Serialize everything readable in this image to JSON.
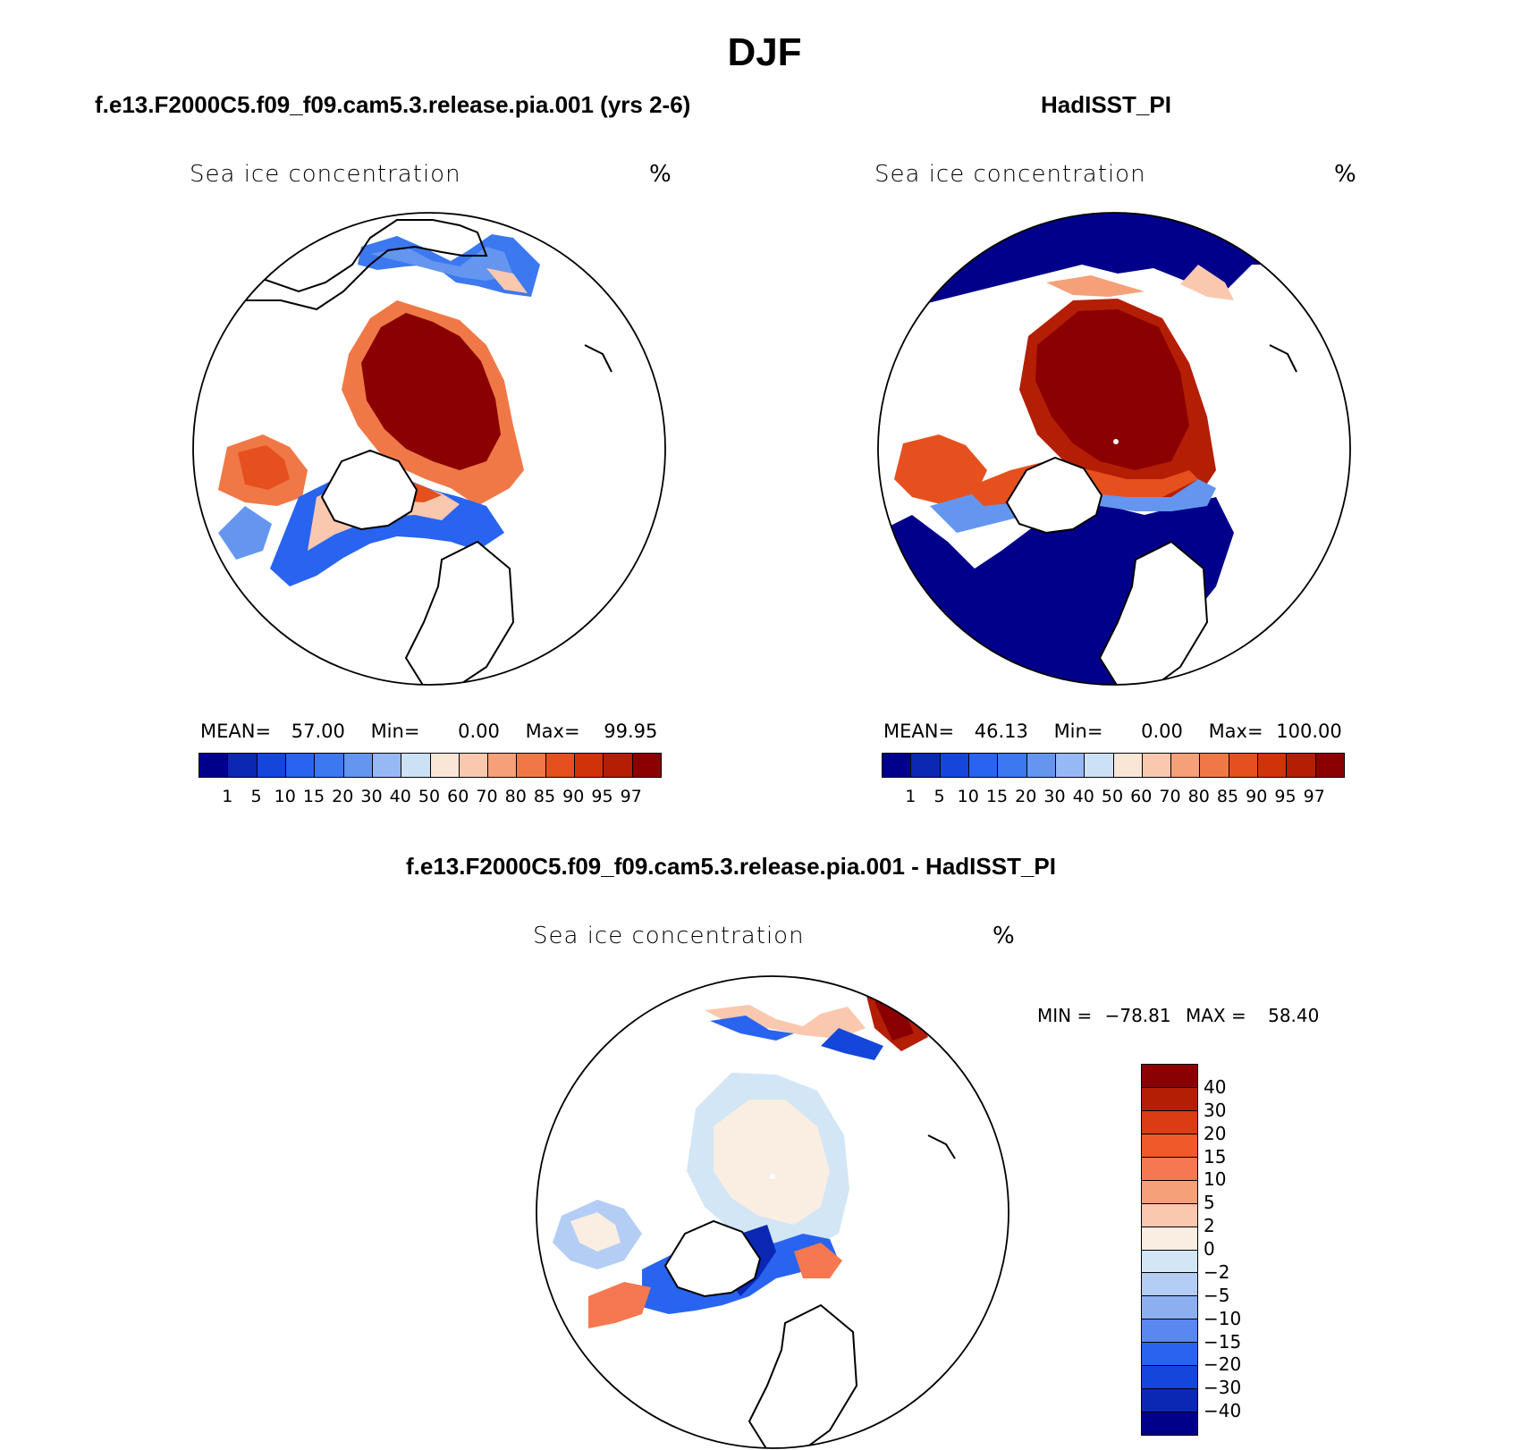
{
  "title": "DJF",
  "panels": [
    {
      "case": "f.e13.F2000C5.f09_f09.cam5.3.release.pia.001 (yrs 2-6)",
      "variable": "Sea ice concentration",
      "unit": "%",
      "stats": {
        "mean_label": "MEAN=",
        "mean": "57.00",
        "min_label": "Min=",
        "min": "0.00",
        "max_label": "Max=",
        "max": "99.95"
      }
    },
    {
      "case": "HadISST_PI",
      "variable": "Sea ice concentration",
      "unit": "%",
      "stats": {
        "mean_label": "MEAN=",
        "mean": "46.13",
        "min_label": "Min=",
        "min": "0.00",
        "max_label": "Max=",
        "max": "100.00"
      }
    }
  ],
  "colorbar": {
    "levels": [
      "1",
      "5",
      "10",
      "15",
      "20",
      "30",
      "40",
      "50",
      "60",
      "70",
      "80",
      "85",
      "90",
      "95",
      "97"
    ],
    "colors": [
      "#00008b",
      "#0a28b4",
      "#1446dc",
      "#2864f0",
      "#3c78f0",
      "#6496f0",
      "#96b9f5",
      "#cde1f5",
      "#fae6d7",
      "#fac8af",
      "#f5a078",
      "#f07846",
      "#e6501e",
      "#d2320a",
      "#b41e05",
      "#8b0000"
    ]
  },
  "difference": {
    "title": "f.e13.F2000C5.f09_f09.cam5.3.release.pia.001 - HadISST_PI",
    "variable": "Sea ice concentration",
    "unit": "%",
    "min_label": "MIN =",
    "min": "−78.81",
    "max_label": "MAX =",
    "max": "58.40",
    "levels": [
      "40",
      "30",
      "20",
      "15",
      "10",
      "5",
      "2",
      "0",
      "−2",
      "−5",
      "−10",
      "−15",
      "−20",
      "−30",
      "−40"
    ],
    "colors": [
      "#8b0000",
      "#b41e05",
      "#dc3c14",
      "#f05a28",
      "#f57850",
      "#f5a078",
      "#fac8af",
      "#faeee2",
      "#d2e6f5",
      "#b4cdf5",
      "#8caff0",
      "#5a87f0",
      "#2864f0",
      "#1446dc",
      "#0a28b4",
      "#00008b"
    ]
  }
}
